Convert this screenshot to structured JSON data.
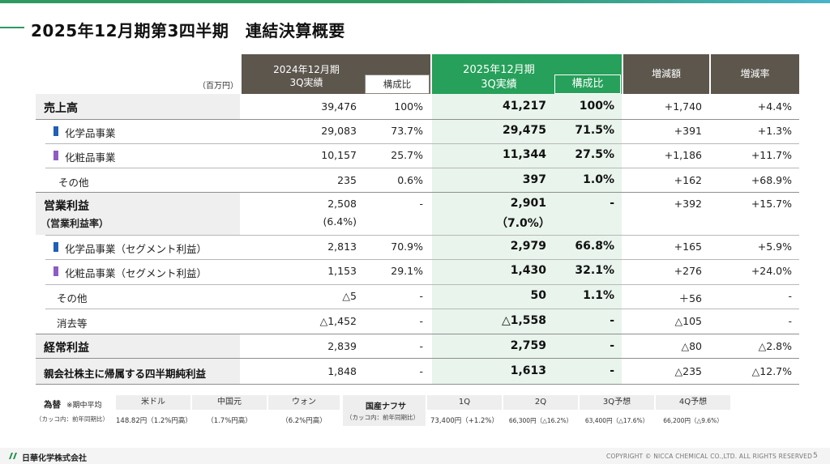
{
  "title": "2025年12月期第3四半期　連結決算概要",
  "unit": "（百万円）",
  "headers": {
    "prev_period_l1": "2024年12月期",
    "prev_period_l2": "3Q実績",
    "prev_ratio": "構成比",
    "cur_period_l1": "2025年12月期",
    "cur_period_l2": "3Q実績",
    "cur_ratio": "構成比",
    "change_amount": "増減額",
    "change_rate": "増減率"
  },
  "rows": [
    {
      "label": "売上高",
      "prev": "39,476",
      "prev_ratio": "100%",
      "cur": "41,217",
      "cur_ratio": "100%",
      "chg": "+1,740",
      "rate": "+4.4%"
    },
    {
      "label": "化学品事業",
      "prev": "29,083",
      "prev_ratio": "73.7%",
      "cur": "29,475",
      "cur_ratio": "71.5%",
      "chg": "+391",
      "rate": "+1.3%"
    },
    {
      "label": "化粧品事業",
      "prev": "10,157",
      "prev_ratio": "25.7%",
      "cur": "11,344",
      "cur_ratio": "27.5%",
      "chg": "+1,186",
      "rate": "+11.7%"
    },
    {
      "label": "その他",
      "prev": "235",
      "prev_ratio": "0.6%",
      "cur": "397",
      "cur_ratio": "1.0%",
      "chg": "+162",
      "rate": "+68.9%"
    },
    {
      "label": "営業利益",
      "label2": "（営業利益率）",
      "prev": "2,508",
      "prev2": "(6.4%)",
      "prev_ratio": "-",
      "cur": "2,901",
      "cur2": "（7.0%）",
      "cur_ratio": "-",
      "chg": "+392",
      "rate": "+15.7%"
    },
    {
      "label": "化学品事業（セグメント利益）",
      "prev": "2,813",
      "prev_ratio": "70.9%",
      "cur": "2,979",
      "cur_ratio": "66.8%",
      "chg": "+165",
      "rate": "+5.9%"
    },
    {
      "label": "化粧品事業（セグメント利益）",
      "prev": "1,153",
      "prev_ratio": "29.1%",
      "cur": "1,430",
      "cur_ratio": "32.1%",
      "chg": "+276",
      "rate": "+24.0%"
    },
    {
      "label": "その他",
      "prev": "△5",
      "prev_ratio": "-",
      "cur": "50",
      "cur_ratio": "1.1%",
      "chg": "＋56",
      "rate": "-"
    },
    {
      "label": "消去等",
      "prev": "△1,452",
      "prev_ratio": "-",
      "cur": "△1,558",
      "cur_ratio": "-",
      "chg": "△105",
      "rate": "-"
    },
    {
      "label": "経常利益",
      "prev": "2,839",
      "prev_ratio": "-",
      "cur": "2,759",
      "cur_ratio": "-",
      "chg": "△80",
      "rate": "△2.8%"
    },
    {
      "label": "親会社株主に帰属する四半期純利益",
      "prev": "1,848",
      "prev_ratio": "-",
      "cur": "1,613",
      "cur_ratio": "-",
      "chg": "△235",
      "rate": "△12.7%"
    }
  ],
  "fx": {
    "label": "為替",
    "note": "※期中平均",
    "sub_note": "（カッコ内：前年同期比）",
    "usd_label": "米ドル",
    "usd_value": "148.82円（1.2%円高）",
    "cny_label": "中国元",
    "cny_value": "（1.7%円高）",
    "krw_label": "ウォン",
    "krw_value": "（6.2%円高）"
  },
  "naphtha": {
    "label": "国産ナフサ",
    "sub_note": "（カッコ内：前年同期比）",
    "q1_label": "1Q",
    "q1_value": "73,400円（+1.2%）",
    "q2_label": "2Q",
    "q2_value": "66,300円（△16.2%）",
    "q3_label": "3Q予想",
    "q3_value": "63,400円（△17.6%）",
    "q4_label": "4Q予想",
    "q4_value": "66,200円（△9.6%）"
  },
  "footer": {
    "company": "日華化学株式会社",
    "copyright": "COPYRIGHT © NICCA CHEMICAL CO.,LTD. ALL RIGHTS RESERVED",
    "page": "5"
  },
  "colors": {
    "accent_green": "#26a05a",
    "header_gray": "#5c564d",
    "chem_blue": "#1f5fb4",
    "cosme_purple": "#8e5bc4"
  }
}
